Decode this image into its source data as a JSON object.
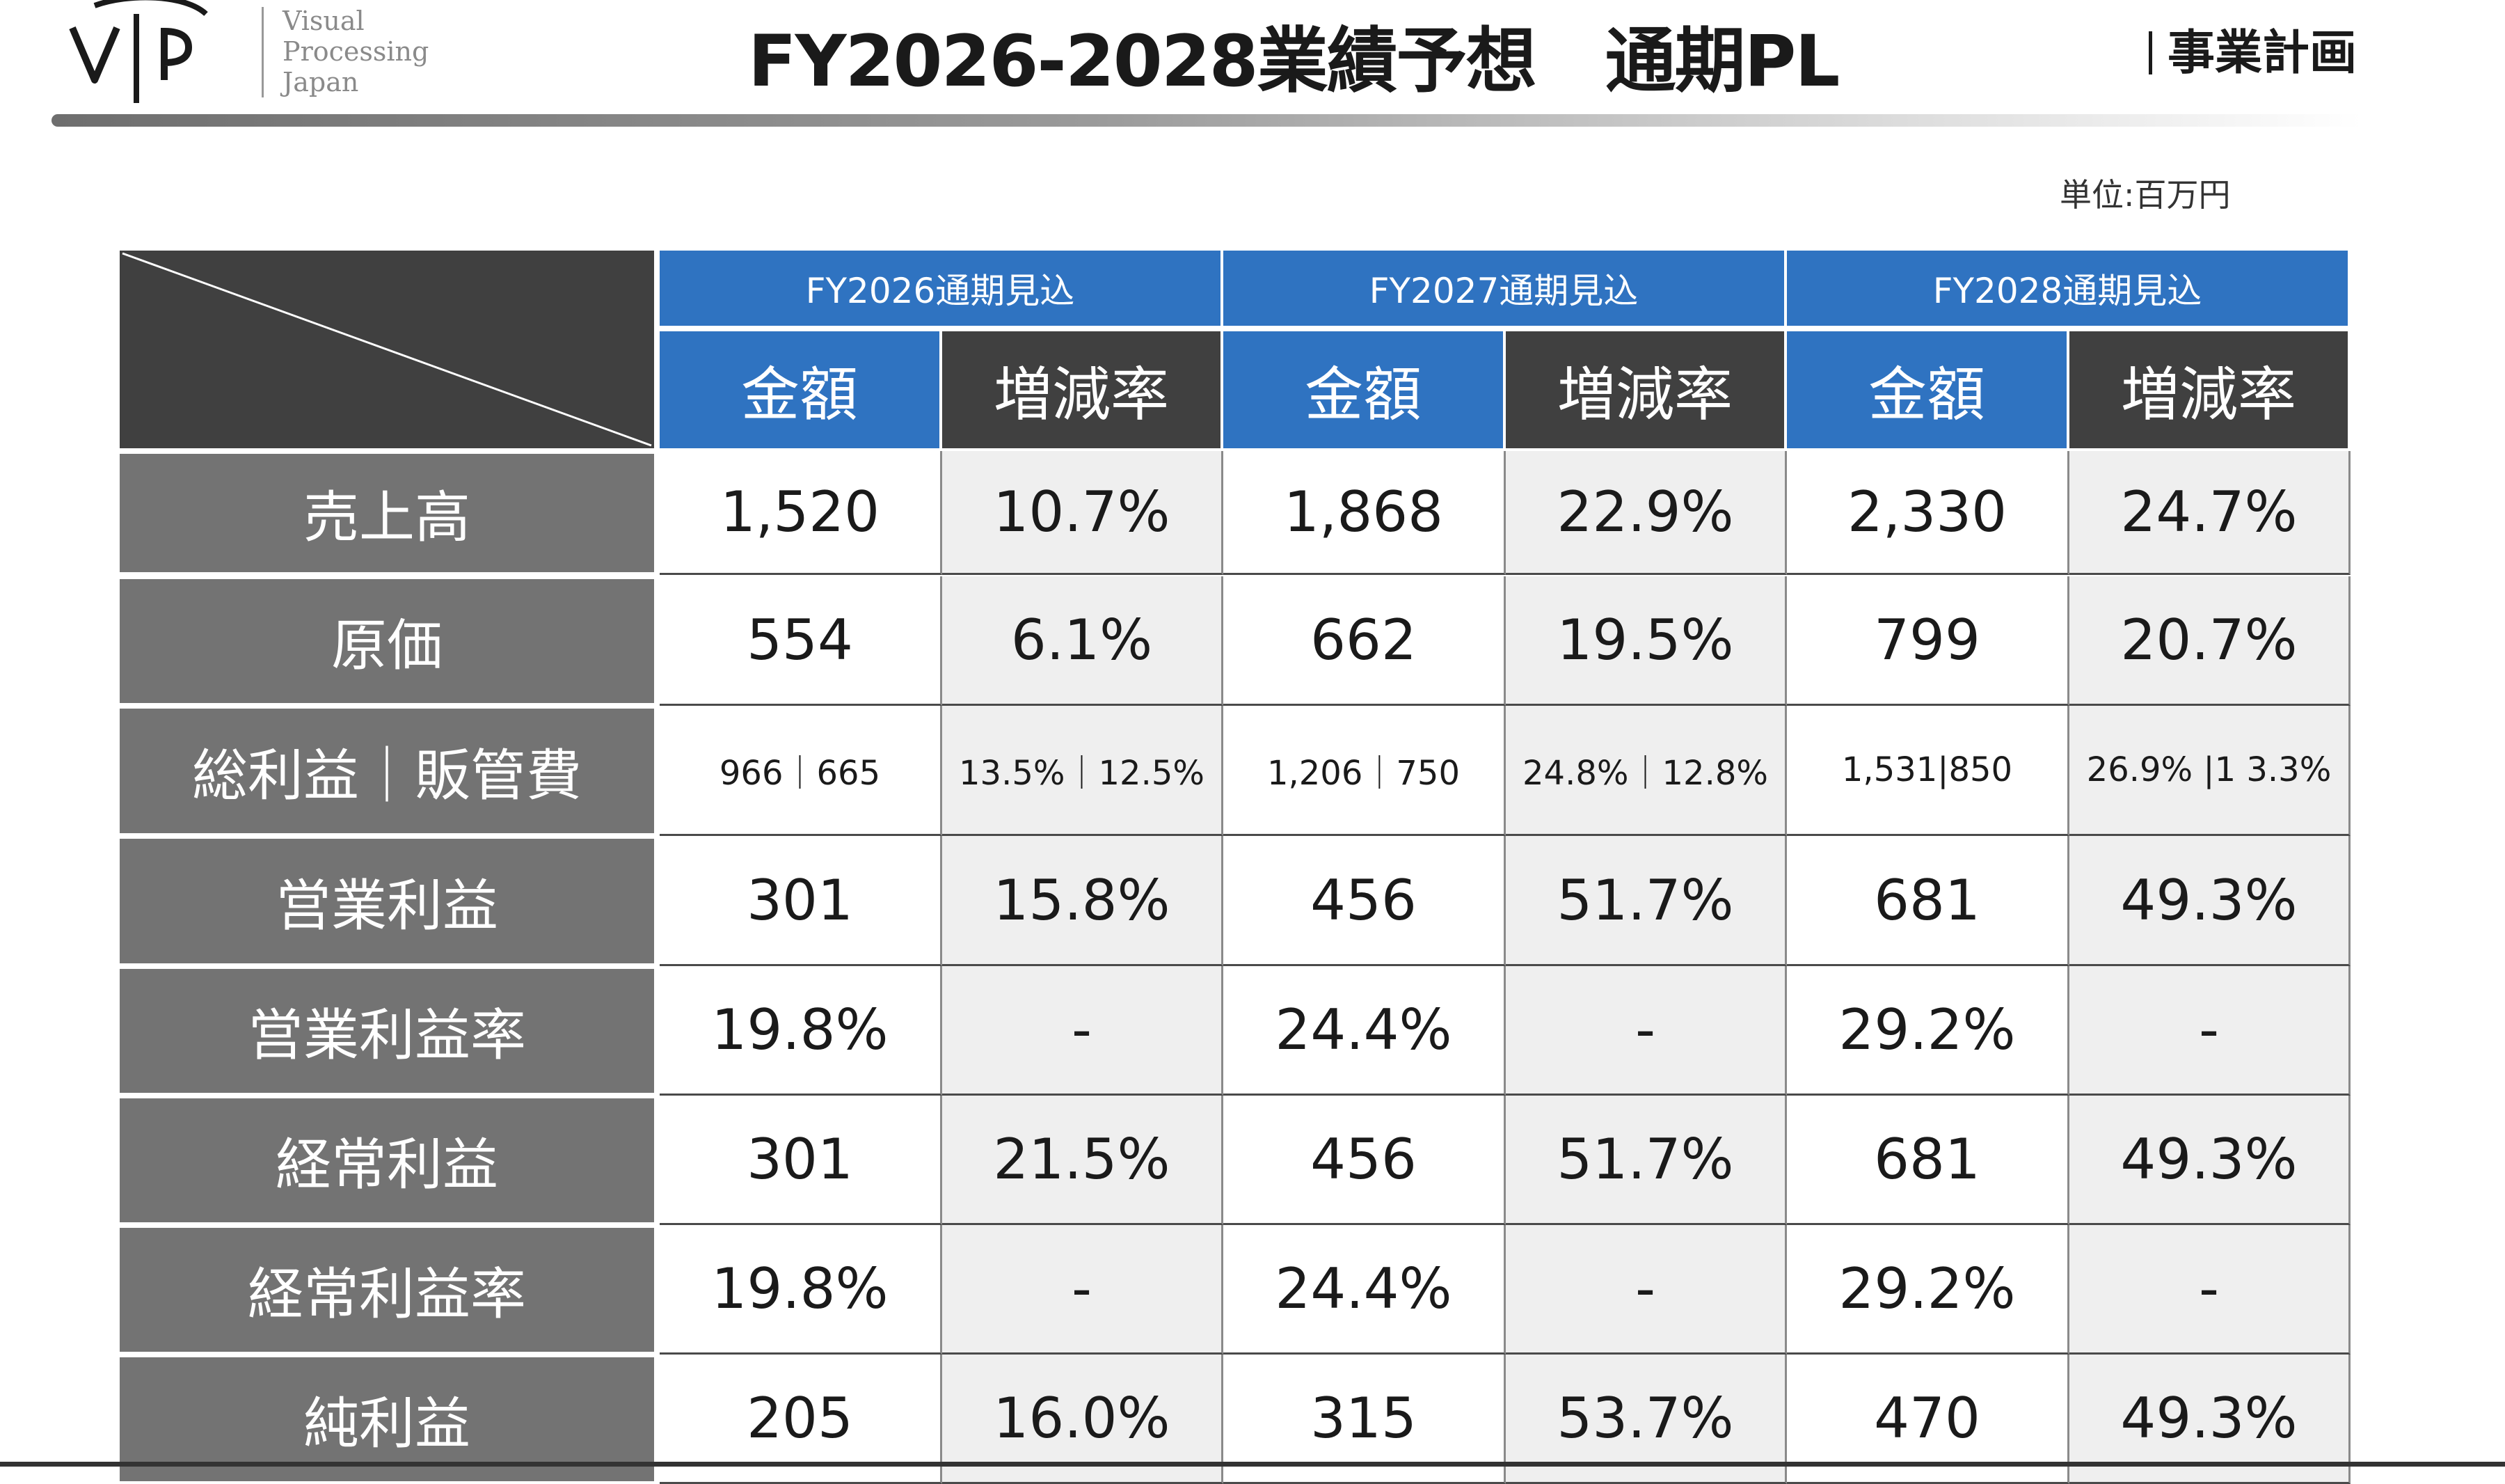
{
  "header": {
    "logo_lines": [
      "Visual",
      "Processing",
      "Japan"
    ],
    "title": "FY2026-2028業績予想　通期PL",
    "section_label": "事業計画"
  },
  "unit_label": "単位:百万円",
  "table": {
    "years": [
      "FY2026通期見込",
      "FY2027通期見込",
      "FY2028通期見込"
    ],
    "sub_headers": {
      "amount": "金額",
      "rate": "増減率"
    },
    "rows": [
      {
        "label": "売上高",
        "values": [
          "1,520",
          "10.7%",
          "1,868",
          "22.9%",
          "2,330",
          "24.7%"
        ]
      },
      {
        "label": "原価",
        "values": [
          "554",
          "6.1%",
          "662",
          "19.5%",
          "799",
          "20.7%"
        ]
      },
      {
        "label": "総利益｜販管費",
        "values": [
          "966｜665",
          "13.5%｜12.5%",
          "1,206｜750",
          "24.8%｜12.8%",
          "1,531|850",
          "26.9% |1 3.3%"
        ]
      },
      {
        "label": "営業利益",
        "values": [
          "301",
          "15.8%",
          "456",
          "51.7%",
          "681",
          "49.3%"
        ]
      },
      {
        "label": "営業利益率",
        "values": [
          "19.8%",
          "-",
          "24.4%",
          "-",
          "29.2%",
          "-"
        ]
      },
      {
        "label": "経常利益",
        "values": [
          "301",
          "21.5%",
          "456",
          "51.7%",
          "681",
          "49.3%"
        ]
      },
      {
        "label": "経常利益率",
        "values": [
          "19.8%",
          "-",
          "24.4%",
          "-",
          "29.2%",
          "-"
        ]
      },
      {
        "label": "純利益",
        "values": [
          "205",
          "16.0%",
          "315",
          "53.7%",
          "470",
          "49.3%"
        ]
      }
    ]
  }
}
